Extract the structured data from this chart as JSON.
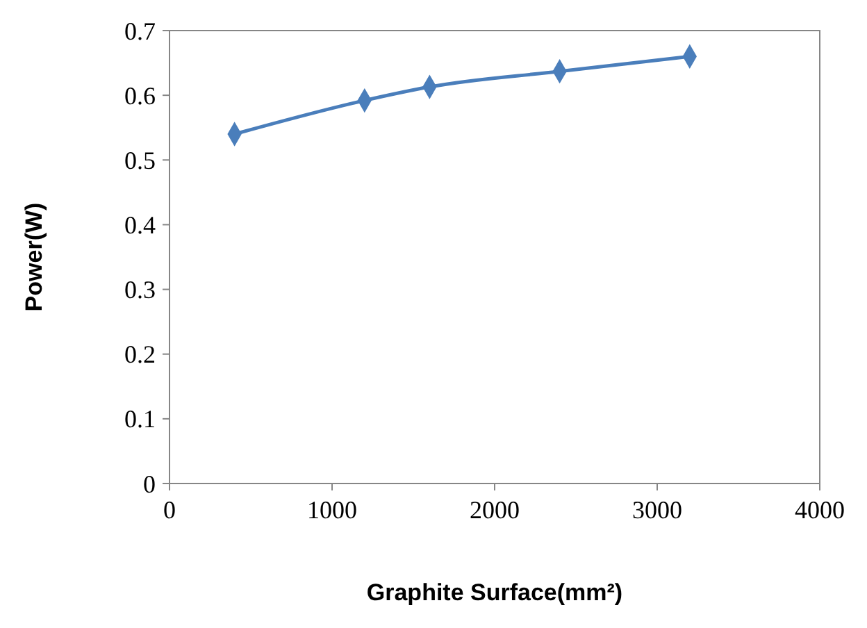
{
  "chart_data": {
    "type": "line",
    "xlabel": "Graphite Surface(mm²)",
    "ylabel": "Power(W)",
    "x": [
      400,
      1200,
      1600,
      2400,
      3200
    ],
    "series": [
      {
        "color": "#4a7ebb",
        "values": [
          0.54,
          0.592,
          0.613,
          0.637,
          0.66
        ]
      }
    ],
    "xlim": [
      0,
      4000
    ],
    "xticks": [
      0,
      1000,
      2000,
      3000,
      4000
    ],
    "ylim": [
      0,
      0.7
    ],
    "yticks": [
      0,
      0.1,
      0.2,
      0.3,
      0.4,
      0.5,
      0.6,
      0.7
    ],
    "marker": "diamond",
    "line_style": "solid",
    "grid": false
  }
}
